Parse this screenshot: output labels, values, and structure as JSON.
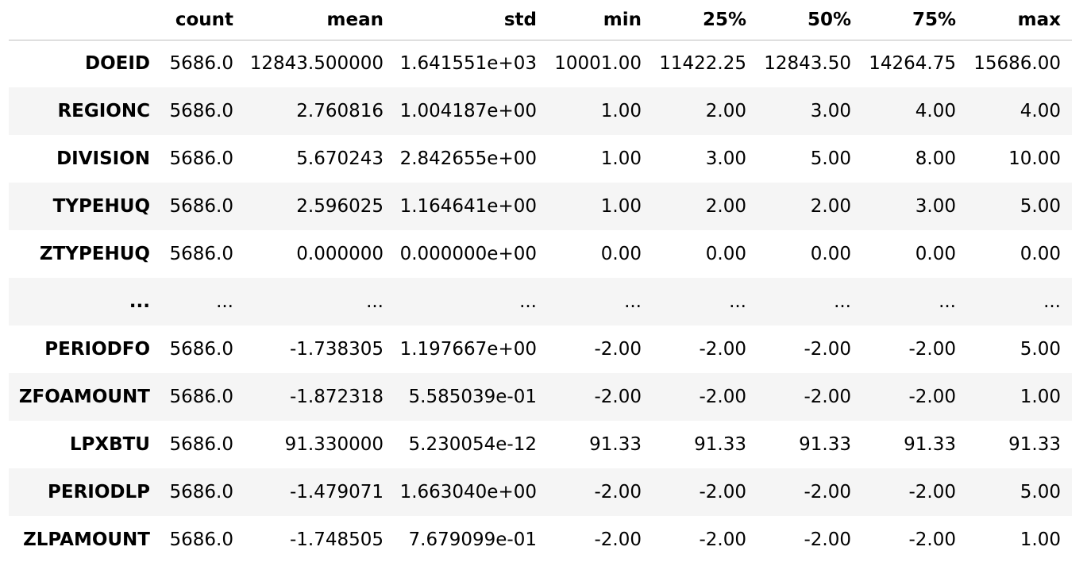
{
  "table": {
    "columns": [
      "",
      "count",
      "mean",
      "std",
      "min",
      "25%",
      "50%",
      "75%",
      "max"
    ],
    "rows": [
      {
        "index": "DOEID",
        "values": [
          "5686.0",
          "12843.500000",
          "1.641551e+03",
          "10001.00",
          "11422.25",
          "12843.50",
          "14264.75",
          "15686.00"
        ]
      },
      {
        "index": "REGIONC",
        "values": [
          "5686.0",
          "2.760816",
          "1.004187e+00",
          "1.00",
          "2.00",
          "3.00",
          "4.00",
          "4.00"
        ]
      },
      {
        "index": "DIVISION",
        "values": [
          "5686.0",
          "5.670243",
          "2.842655e+00",
          "1.00",
          "3.00",
          "5.00",
          "8.00",
          "10.00"
        ]
      },
      {
        "index": "TYPEHUQ",
        "values": [
          "5686.0",
          "2.596025",
          "1.164641e+00",
          "1.00",
          "2.00",
          "2.00",
          "3.00",
          "5.00"
        ]
      },
      {
        "index": "ZTYPEHUQ",
        "values": [
          "5686.0",
          "0.000000",
          "0.000000e+00",
          "0.00",
          "0.00",
          "0.00",
          "0.00",
          "0.00"
        ]
      },
      {
        "index": "...",
        "values": [
          "...",
          "...",
          "...",
          "...",
          "...",
          "...",
          "...",
          "..."
        ]
      },
      {
        "index": "PERIODFO",
        "values": [
          "5686.0",
          "-1.738305",
          "1.197667e+00",
          "-2.00",
          "-2.00",
          "-2.00",
          "-2.00",
          "5.00"
        ]
      },
      {
        "index": "ZFOAMOUNT",
        "values": [
          "5686.0",
          "-1.872318",
          "5.585039e-01",
          "-2.00",
          "-2.00",
          "-2.00",
          "-2.00",
          "1.00"
        ]
      },
      {
        "index": "LPXBTU",
        "values": [
          "5686.0",
          "91.330000",
          "5.230054e-12",
          "91.33",
          "91.33",
          "91.33",
          "91.33",
          "91.33"
        ]
      },
      {
        "index": "PERIODLP",
        "values": [
          "5686.0",
          "-1.479071",
          "1.663040e+00",
          "-2.00",
          "-2.00",
          "-2.00",
          "-2.00",
          "5.00"
        ]
      },
      {
        "index": "ZLPAMOUNT",
        "values": [
          "5686.0",
          "-1.748505",
          "7.679099e-01",
          "-2.00",
          "-2.00",
          "-2.00",
          "-2.00",
          "1.00"
        ]
      }
    ]
  },
  "colors": {
    "stripe": "#f5f5f5",
    "header_rule": "#bdbdbd",
    "text": "#000000"
  }
}
